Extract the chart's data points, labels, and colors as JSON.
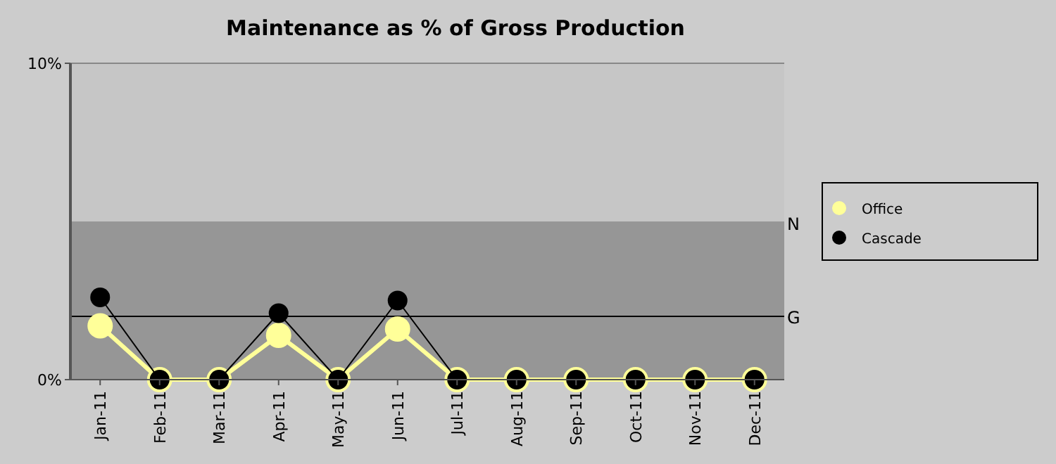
{
  "chart_data": {
    "type": "line",
    "title": "Maintenance as % of Gross Production",
    "categories": [
      "Jan-11",
      "Feb-11",
      "Mar-11",
      "Apr-11",
      "May-11",
      "Jun-11",
      "Jul-11",
      "Aug-11",
      "Sep-11",
      "Oct-11",
      "Nov-11",
      "Dec-11"
    ],
    "series": [
      {
        "name": "Office",
        "color": "#ffff99",
        "values": [
          1.7,
          0,
          0,
          1.4,
          0,
          1.6,
          0,
          0,
          0,
          0,
          0,
          0
        ]
      },
      {
        "name": "Cascade",
        "color": "#000000",
        "values": [
          2.6,
          0,
          0,
          2.1,
          0,
          2.5,
          0,
          0,
          0,
          0,
          0,
          0
        ]
      }
    ],
    "ylim": [
      0,
      10
    ],
    "yticks": [
      {
        "value": 0,
        "label": "0%"
      },
      {
        "value": 10,
        "label": "10%"
      }
    ],
    "bands": [
      {
        "axis": "y",
        "from": 0,
        "to": 5,
        "label": "N",
        "color": "#969696"
      }
    ],
    "ref_lines": [
      {
        "axis": "y",
        "value": 2,
        "label": "G",
        "color": "#000000"
      }
    ],
    "legend": "right",
    "marker": "circle",
    "line_style": "solid"
  }
}
